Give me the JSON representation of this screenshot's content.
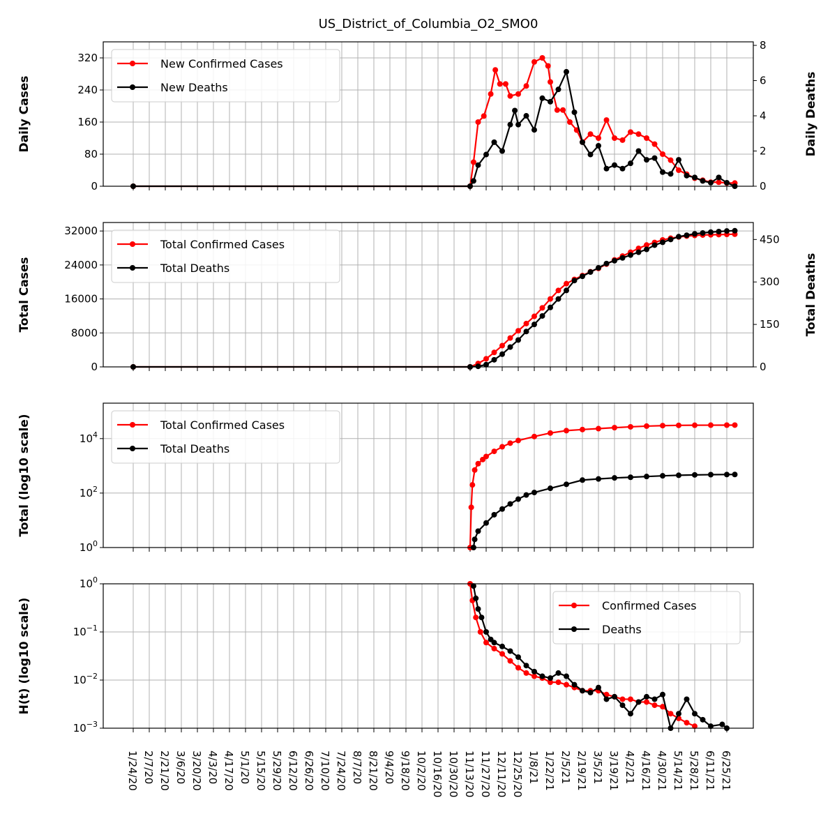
{
  "title": "US_District_of_Columbia_O2_SMO0",
  "colors": {
    "cases": "#ff0000",
    "deaths": "#000000",
    "grid": "#b0b0b0"
  },
  "chart_data": [
    {
      "type": "line",
      "panel": "daily",
      "ylabel": "Daily Cases",
      "ylabel_right": "Daily Deaths",
      "yticks": [
        "0",
        "80",
        "160",
        "240",
        "320"
      ],
      "ylim": [
        0,
        360
      ],
      "yticks_right": [
        "0",
        "2",
        "4",
        "6",
        "8"
      ],
      "ylim_right": [
        0,
        8.2
      ],
      "legend": "top-left",
      "grid": true,
      "series": [
        {
          "name": "New Confirmed Cases",
          "axis": "left",
          "color": "#ff0000",
          "x": [
            "1/24/20",
            "11/13/20",
            "11/16/20",
            "11/20/20",
            "11/25/20",
            "12/1/20",
            "12/5/20",
            "12/9/20",
            "12/14/20",
            "12/18/20",
            "12/25/20",
            "1/1/21",
            "1/8/21",
            "1/15/21",
            "1/20/21",
            "1/22/21",
            "1/28/21",
            "2/2/21",
            "2/8/21",
            "2/14/21",
            "2/19/21",
            "2/26/21",
            "3/5/21",
            "3/12/21",
            "3/19/21",
            "3/26/21",
            "4/2/21",
            "4/9/21",
            "4/16/21",
            "4/23/21",
            "4/30/21",
            "5/7/21",
            "5/14/21",
            "5/21/21",
            "5/28/21",
            "6/4/21",
            "6/11/21",
            "6/18/21",
            "6/25/21",
            "7/2/21"
          ],
          "values": [
            0,
            0,
            60,
            160,
            175,
            230,
            290,
            255,
            255,
            225,
            230,
            250,
            310,
            320,
            300,
            260,
            190,
            190,
            160,
            140,
            110,
            130,
            120,
            165,
            120,
            115,
            135,
            130,
            120,
            105,
            80,
            65,
            40,
            30,
            20,
            15,
            10,
            10,
            8,
            8
          ]
        },
        {
          "name": "New Deaths",
          "axis": "right",
          "color": "#000000",
          "x": [
            "1/24/20",
            "11/13/20",
            "11/16/20",
            "11/20/20",
            "11/27/20",
            "12/4/20",
            "12/11/20",
            "12/18/20",
            "12/22/20",
            "12/25/20",
            "1/1/21",
            "1/8/21",
            "1/15/21",
            "1/22/21",
            "1/29/21",
            "2/5/21",
            "2/12/21",
            "2/19/21",
            "2/26/21",
            "3/5/21",
            "3/12/21",
            "3/19/21",
            "3/26/21",
            "4/2/21",
            "4/9/21",
            "4/16/21",
            "4/23/21",
            "4/30/21",
            "5/7/21",
            "5/14/21",
            "5/21/21",
            "5/28/21",
            "6/4/21",
            "6/11/21",
            "6/18/21",
            "6/25/21",
            "7/2/21"
          ],
          "values": [
            0,
            0,
            0.3,
            1.2,
            1.8,
            2.5,
            2.0,
            3.5,
            4.3,
            3.5,
            4.0,
            3.2,
            5.0,
            4.8,
            5.5,
            6.5,
            4.2,
            2.5,
            1.8,
            2.3,
            1.0,
            1.2,
            1.0,
            1.3,
            2.0,
            1.5,
            1.6,
            0.8,
            0.7,
            1.5,
            0.6,
            0.5,
            0.3,
            0.2,
            0.5,
            0.2,
            0.0
          ]
        }
      ]
    },
    {
      "type": "line",
      "panel": "total",
      "ylabel": "Total Cases",
      "ylabel_right": "Total Deaths",
      "yticks": [
        "0",
        "8000",
        "16000",
        "24000",
        "32000"
      ],
      "ylim": [
        0,
        34000
      ],
      "yticks_right": [
        "0",
        "150",
        "300",
        "450"
      ],
      "ylim_right": [
        0,
        510
      ],
      "legend": "top-left",
      "grid": true,
      "series": [
        {
          "name": "Total Confirmed Cases",
          "axis": "left",
          "color": "#ff0000",
          "x": [
            "1/24/20",
            "11/13/20",
            "11/20/20",
            "11/27/20",
            "12/4/20",
            "12/11/20",
            "12/18/20",
            "12/25/20",
            "1/1/21",
            "1/8/21",
            "1/15/21",
            "1/22/21",
            "1/29/21",
            "2/5/21",
            "2/12/21",
            "2/19/21",
            "2/26/21",
            "3/5/21",
            "3/12/21",
            "3/19/21",
            "3/26/21",
            "4/2/21",
            "4/9/21",
            "4/16/21",
            "4/23/21",
            "4/30/21",
            "5/7/21",
            "5/14/21",
            "5/21/21",
            "5/28/21",
            "6/4/21",
            "6/11/21",
            "6/18/21",
            "6/25/21",
            "7/2/21"
          ],
          "values": [
            0,
            0,
            800,
            1900,
            3400,
            5000,
            6800,
            8500,
            10200,
            11900,
            13900,
            16000,
            18000,
            19600,
            20600,
            21500,
            22400,
            23200,
            24200,
            25200,
            26100,
            27000,
            27900,
            28700,
            29300,
            29900,
            30300,
            30600,
            30800,
            30950,
            31050,
            31100,
            31150,
            31200,
            31250
          ]
        },
        {
          "name": "Total Deaths",
          "axis": "right",
          "color": "#000000",
          "x": [
            "1/24/20",
            "11/13/20",
            "11/20/20",
            "11/27/20",
            "12/4/20",
            "12/11/20",
            "12/18/20",
            "12/25/20",
            "1/1/21",
            "1/8/21",
            "1/15/21",
            "1/22/21",
            "1/29/21",
            "2/5/21",
            "2/12/21",
            "2/19/21",
            "2/26/21",
            "3/5/21",
            "3/12/21",
            "3/19/21",
            "3/26/21",
            "4/2/21",
            "4/9/21",
            "4/16/21",
            "4/23/21",
            "4/30/21",
            "5/7/21",
            "5/14/21",
            "5/21/21",
            "5/28/21",
            "6/4/21",
            "6/11/21",
            "6/18/21",
            "6/25/21",
            "7/2/21"
          ],
          "values": [
            0,
            0,
            2,
            8,
            25,
            45,
            70,
            95,
            125,
            150,
            180,
            210,
            240,
            270,
            305,
            320,
            335,
            350,
            365,
            375,
            385,
            395,
            405,
            415,
            430,
            440,
            450,
            460,
            465,
            470,
            473,
            476,
            478,
            480,
            481
          ]
        }
      ]
    },
    {
      "type": "line",
      "panel": "log_total",
      "ylabel": "Total (log10 scale)",
      "yscale": "log10",
      "yticks": [
        "10^0",
        "10^2",
        "10^4"
      ],
      "ylim": [
        1,
        200000
      ],
      "legend": "top-left",
      "grid": true,
      "series": [
        {
          "name": "Total Confirmed Cases",
          "color": "#ff0000",
          "x": [
            "11/13/20",
            "11/14/20",
            "11/15/20",
            "11/17/20",
            "11/20/20",
            "11/24/20",
            "11/27/20",
            "12/4/20",
            "12/11/20",
            "12/18/20",
            "12/25/20",
            "1/8/21",
            "1/22/21",
            "2/5/21",
            "2/19/21",
            "3/5/21",
            "3/19/21",
            "4/2/21",
            "4/16/21",
            "4/30/21",
            "5/14/21",
            "5/28/21",
            "6/11/21",
            "6/25/21",
            "7/2/21"
          ],
          "values": [
            1,
            30,
            200,
            700,
            1200,
            1700,
            2200,
            3400,
            5000,
            6800,
            8500,
            11900,
            16000,
            19600,
            21500,
            23200,
            25200,
            27000,
            28700,
            29900,
            30600,
            30950,
            31100,
            31200,
            31250
          ]
        },
        {
          "name": "Total Deaths",
          "color": "#000000",
          "x": [
            "11/16/20",
            "11/17/20",
            "11/20/20",
            "11/27/20",
            "12/4/20",
            "12/11/20",
            "12/18/20",
            "12/25/20",
            "1/1/21",
            "1/8/21",
            "1/22/21",
            "2/5/21",
            "2/19/21",
            "3/5/21",
            "3/19/21",
            "4/2/21",
            "4/16/21",
            "4/30/21",
            "5/14/21",
            "5/28/21",
            "6/11/21",
            "6/25/21",
            "7/2/21"
          ],
          "values": [
            1,
            2,
            4,
            8,
            16,
            26,
            40,
            60,
            85,
            105,
            150,
            210,
            300,
            330,
            360,
            380,
            405,
            430,
            450,
            465,
            474,
            479,
            481
          ]
        }
      ]
    },
    {
      "type": "scatter",
      "panel": "hazard",
      "ylabel": "H(t) (log10 scale)",
      "yscale": "log10",
      "yticks": [
        "10^-3",
        "10^-2",
        "10^-1",
        "10^0"
      ],
      "ylim": [
        0.001,
        1
      ],
      "legend": "top-right",
      "grid": true,
      "series": [
        {
          "name": "Confirmed Cases",
          "color": "#ff0000",
          "x": [
            "11/13/20",
            "11/15/20",
            "11/18/20",
            "11/22/20",
            "11/27/20",
            "12/4/20",
            "12/11/20",
            "12/18/20",
            "12/25/20",
            "1/1/21",
            "1/8/21",
            "1/15/21",
            "1/22/21",
            "1/29/21",
            "2/5/21",
            "2/12/21",
            "2/19/21",
            "2/26/21",
            "3/5/21",
            "3/12/21",
            "3/19/21",
            "3/26/21",
            "4/2/21",
            "4/9/21",
            "4/16/21",
            "4/23/21",
            "4/30/21",
            "5/7/21",
            "5/14/21",
            "5/21/21",
            "5/28/21"
          ],
          "values": [
            1,
            0.45,
            0.2,
            0.1,
            0.06,
            0.045,
            0.035,
            0.025,
            0.018,
            0.014,
            0.012,
            0.011,
            0.009,
            0.009,
            0.008,
            0.007,
            0.006,
            0.006,
            0.006,
            0.005,
            0.0045,
            0.004,
            0.004,
            0.0035,
            0.0035,
            0.003,
            0.0028,
            0.002,
            0.0016,
            0.0013,
            0.0011
          ]
        },
        {
          "name": "Deaths",
          "color": "#000000",
          "x": [
            "11/16/20",
            "11/18/20",
            "11/20/20",
            "11/23/20",
            "11/27/20",
            "12/1/20",
            "12/4/20",
            "12/11/20",
            "12/18/20",
            "12/25/20",
            "1/1/21",
            "1/8/21",
            "1/15/21",
            "1/22/21",
            "1/29/21",
            "2/5/21",
            "2/12/21",
            "2/19/21",
            "2/26/21",
            "3/5/21",
            "3/12/21",
            "3/19/21",
            "3/26/21",
            "4/2/21",
            "4/9/21",
            "4/16/21",
            "4/23/21",
            "4/30/21",
            "5/7/21",
            "5/14/21",
            "5/21/21",
            "5/28/21",
            "6/4/21",
            "6/11/21",
            "6/21/21",
            "6/25/21"
          ],
          "values": [
            0.9,
            0.5,
            0.3,
            0.2,
            0.1,
            0.07,
            0.06,
            0.05,
            0.04,
            0.03,
            0.02,
            0.015,
            0.012,
            0.011,
            0.014,
            0.012,
            0.008,
            0.006,
            0.0055,
            0.007,
            0.004,
            0.0045,
            0.003,
            0.002,
            0.0035,
            0.0045,
            0.004,
            0.005,
            0.001,
            0.002,
            0.004,
            0.002,
            0.0015,
            0.0011,
            0.0012,
            0.001
          ]
        }
      ]
    }
  ],
  "x_tick_labels": [
    "1/24/20",
    "2/7/20",
    "2/21/20",
    "3/6/20",
    "3/20/20",
    "4/3/20",
    "4/17/20",
    "5/1/20",
    "5/15/20",
    "5/29/20",
    "6/12/20",
    "6/26/20",
    "7/10/20",
    "7/24/20",
    "8/7/20",
    "8/21/20",
    "9/4/20",
    "9/18/20",
    "10/2/20",
    "10/16/20",
    "10/30/20",
    "11/13/20",
    "11/27/20",
    "12/11/20",
    "12/25/20",
    "1/8/21",
    "1/22/21",
    "2/5/21",
    "2/19/21",
    "3/5/21",
    "3/19/21",
    "4/2/21",
    "4/16/21",
    "4/30/21",
    "5/14/21",
    "5/28/21",
    "6/11/21",
    "6/25/21"
  ]
}
